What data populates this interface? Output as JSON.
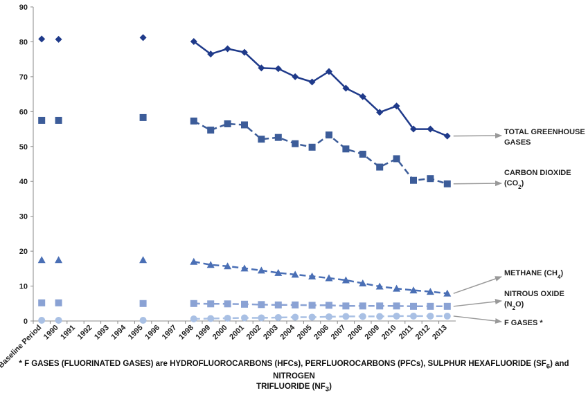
{
  "chart_data": {
    "type": "line",
    "categories": [
      "Baseline Period",
      "1990",
      "1991",
      "1992",
      "1993",
      "1994",
      "1995",
      "1996",
      "1997",
      "1998",
      "1999",
      "2000",
      "2001",
      "2002",
      "2003",
      "2004",
      "2005",
      "2006",
      "2007",
      "2008",
      "2009",
      "2010",
      "2011",
      "2012",
      "2013"
    ],
    "ylim": [
      0,
      90
    ],
    "yticks": [
      0,
      10,
      20,
      30,
      40,
      50,
      60,
      70,
      80,
      90
    ],
    "grid": false,
    "legend": "labels at line ends (right)",
    "series": [
      {
        "name": "TOTAL GREENHOUSE GASES",
        "label_lines": [
          "TOTAL GREENHOUSE",
          "GASES"
        ],
        "color": "#1f3a8a",
        "marker": "diamond",
        "dash": "solid",
        "values": [
          80.8,
          80.7,
          null,
          null,
          null,
          null,
          81.2,
          null,
          null,
          80.1,
          76.5,
          78.0,
          77.0,
          72.5,
          72.3,
          70.0,
          68.5,
          71.5,
          66.7,
          64.3,
          59.8,
          61.6,
          55.0,
          55.0,
          53.0
        ]
      },
      {
        "name": "CARBON DIOXIDE (CO2)",
        "label_lines": [
          "CARBON DIOXIDE",
          "(CO",
          "2",
          ")"
        ],
        "color": "#3c5c99",
        "marker": "square",
        "dash": "dashed",
        "values": [
          57.5,
          57.5,
          null,
          null,
          null,
          null,
          58.3,
          null,
          null,
          57.3,
          54.7,
          56.5,
          56.2,
          52.1,
          52.6,
          50.8,
          49.8,
          53.3,
          49.3,
          47.8,
          44.1,
          46.5,
          40.3,
          40.8,
          39.3
        ]
      },
      {
        "name": "METHANE (CH4)",
        "label_lines": [
          "METHANE (CH",
          "4",
          ")"
        ],
        "color": "#4a6fb5",
        "marker": "triangle",
        "dash": "dashed",
        "values": [
          17.5,
          17.5,
          null,
          null,
          null,
          null,
          17.5,
          null,
          null,
          17.0,
          16.1,
          15.7,
          15.1,
          14.5,
          13.8,
          13.3,
          12.8,
          12.3,
          11.7,
          10.8,
          9.9,
          9.3,
          8.8,
          8.4,
          7.9
        ]
      },
      {
        "name": "NITROUS OXIDE (N2O)",
        "label_lines": [
          "NITROUS OXIDE",
          "(N",
          "2",
          "O)"
        ],
        "color": "#8aa2d4",
        "marker": "square",
        "dash": "dashed",
        "values": [
          5.2,
          5.2,
          null,
          null,
          null,
          null,
          5.0,
          null,
          null,
          5.0,
          4.9,
          4.9,
          4.8,
          4.7,
          4.6,
          4.6,
          4.5,
          4.5,
          4.3,
          4.3,
          4.3,
          4.3,
          4.2,
          4.2,
          4.2
        ]
      },
      {
        "name": "F GASES *",
        "label_lines": [
          "F GASES *"
        ],
        "color": "#a9c0e4",
        "marker": "circle",
        "dash": "dashed",
        "values": [
          0.2,
          0.2,
          null,
          null,
          null,
          null,
          0.2,
          null,
          null,
          0.6,
          0.7,
          0.8,
          0.9,
          0.9,
          1.0,
          1.1,
          1.1,
          1.2,
          1.3,
          1.3,
          1.3,
          1.4,
          1.4,
          1.4,
          1.4
        ]
      }
    ]
  },
  "footnote": {
    "line1_a": "* F GASES (FLUORINATED GASES) are HYDROFLUOROCARBONS (HFCs), PERFLUOROCARBONS (PFCs), SULPHUR HEXAFLUORIDE (SF",
    "line1_sub": "6",
    "line1_b": ") and NITROGEN",
    "line2_a": "TRIFLUORIDE (NF",
    "line2_sub": "3",
    "line2_b": ")"
  }
}
